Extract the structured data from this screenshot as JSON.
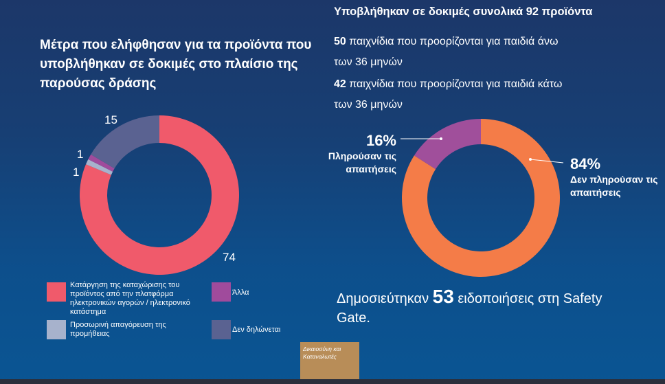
{
  "left_title": "Μέτρα που ελήφθησαν για τα προϊόντα που υποβλήθηκαν σε δοκιμές στο πλαίσιο της παρούσας δράσης",
  "right_title": "Υποβλήθηκαν σε δοκιμές συνολικά 92 προϊόντα",
  "info": [
    {
      "num": "50",
      "text": " παιχνίδια που προορίζονται για παιδιά άνω",
      "line2": "των 36 μηνών"
    },
    {
      "num": "42",
      "text": " παιχνίδια που προορίζονται για παιδιά κάτω",
      "line2": "των 36 μηνών"
    }
  ],
  "notice": {
    "pre": "Δημοσιεύτηκαν ",
    "num": "53",
    "post": " ειδοποιήσεις στη Safety Gate."
  },
  "footer_tag": "Δικαιοσύνη και Καταναλωτές",
  "chart_data": [
    {
      "type": "pie",
      "title": "Μέτρα που ελήφθησαν για τα προϊόντα που υποβλήθηκαν σε δοκιμές στο πλαίσιο της παρούσας δράσης",
      "categories": [
        "Κατάργηση της καταχώρισης του προϊόντος από την πλατφόρμα ηλεκτρονικών αγορών / ηλεκτρονικό κατάστημα",
        "Προσωρινή απαγόρευση της προμήθειας",
        "Άλλα",
        "Δεν δηλώνεται"
      ],
      "values": [
        74,
        1,
        1,
        15
      ],
      "labels": [
        "74",
        "1",
        "1",
        "15"
      ],
      "colors": [
        "#f05a6b",
        "#a7b2cc",
        "#a04b9c",
        "#5a6291"
      ],
      "legend_position": "bottom"
    },
    {
      "type": "pie",
      "title": "Υποβλήθηκαν σε δοκιμές συνολικά 92 προϊόντα",
      "categories": [
        "Δεν πληρούσαν τις απαιτήσεις",
        "Πληρούσαν τις απαιτήσεις"
      ],
      "values": [
        84,
        16
      ],
      "labels": [
        "84%",
        "16%"
      ],
      "colors": [
        "#f47c48",
        "#a04f9b"
      ]
    }
  ]
}
